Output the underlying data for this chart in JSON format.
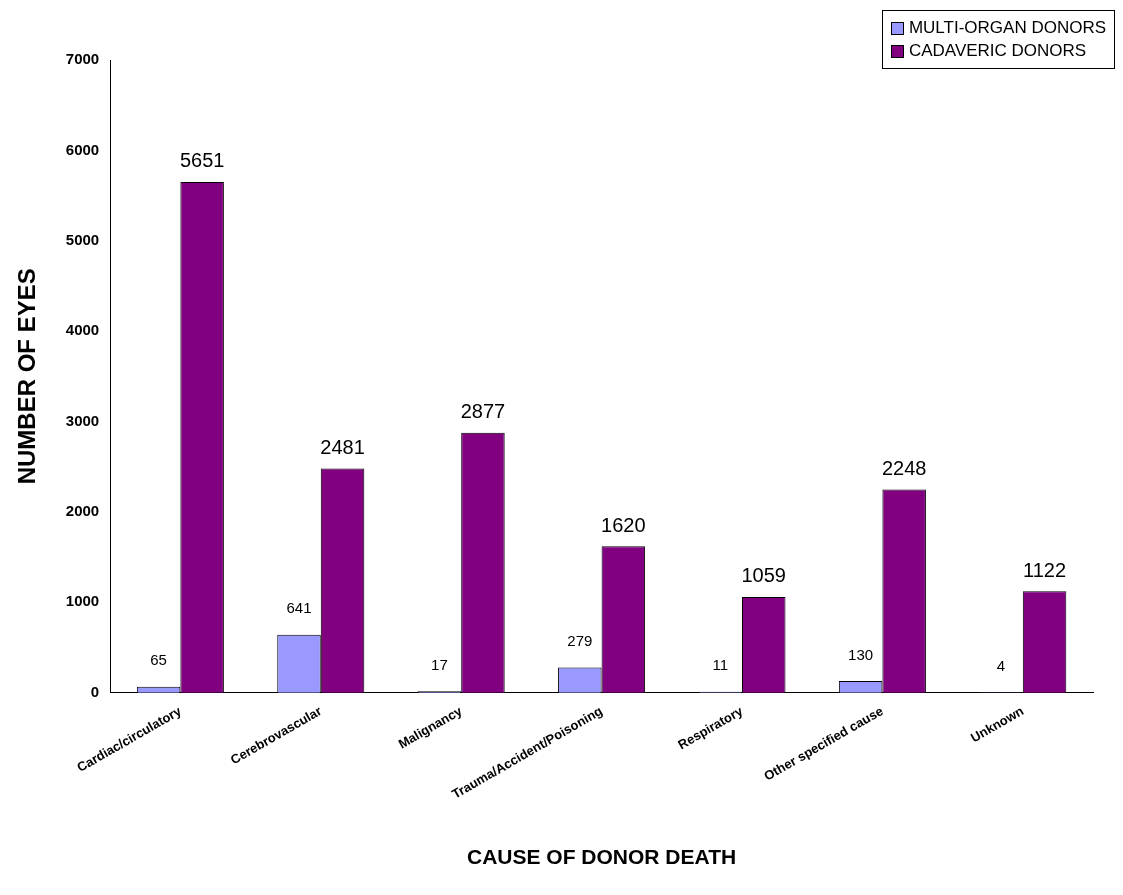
{
  "chart_data": {
    "type": "bar",
    "xlabel": "CAUSE OF DONOR DEATH",
    "ylabel": "NUMBER OF EYES",
    "categories": [
      "Cardiac/circulatory",
      "Cerebrovascular",
      "Malignancy",
      "Trauma/Accident/Poisoning",
      "Respiratory",
      "Other specified cause",
      "Unknown"
    ],
    "series": [
      {
        "name": "MULTI-ORGAN DONORS",
        "color": "#9999ff",
        "values": [
          65,
          641,
          17,
          279,
          11,
          130,
          4
        ]
      },
      {
        "name": "CADAVERIC DONORS",
        "color": "#800080",
        "values": [
          5651,
          2481,
          2877,
          1620,
          1059,
          2248,
          1122
        ]
      }
    ],
    "ylim": [
      0,
      7000
    ],
    "yticks": [
      0,
      1000,
      2000,
      3000,
      4000,
      5000,
      6000,
      7000
    ],
    "grid": false,
    "legend": "top right",
    "data_labels": true
  }
}
